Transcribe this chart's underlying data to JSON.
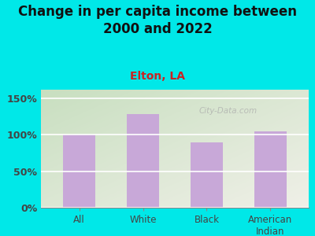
{
  "title": "Change in per capita income between\n2000 and 2022",
  "subtitle": "Elton, LA",
  "categories": [
    "All",
    "White",
    "Black",
    "American\nIndian"
  ],
  "values": [
    100,
    128,
    90,
    105
  ],
  "bar_color": "#c8a8d8",
  "background_color": "#00e8e8",
  "plot_bg_color_topleft": "#c8dfc0",
  "plot_bg_color_bottomright": "#f0f0e8",
  "title_fontsize": 12,
  "subtitle_fontsize": 10,
  "subtitle_color": "#cc2222",
  "title_color": "#111111",
  "tick_label_color": "#444444",
  "ylim": [
    0,
    162
  ],
  "yticks": [
    0,
    50,
    100,
    150
  ],
  "ytick_labels": [
    "0%",
    "50%",
    "100%",
    "150%"
  ],
  "watermark": "City-Data.com",
  "watermark_color": "#aaaaaa"
}
